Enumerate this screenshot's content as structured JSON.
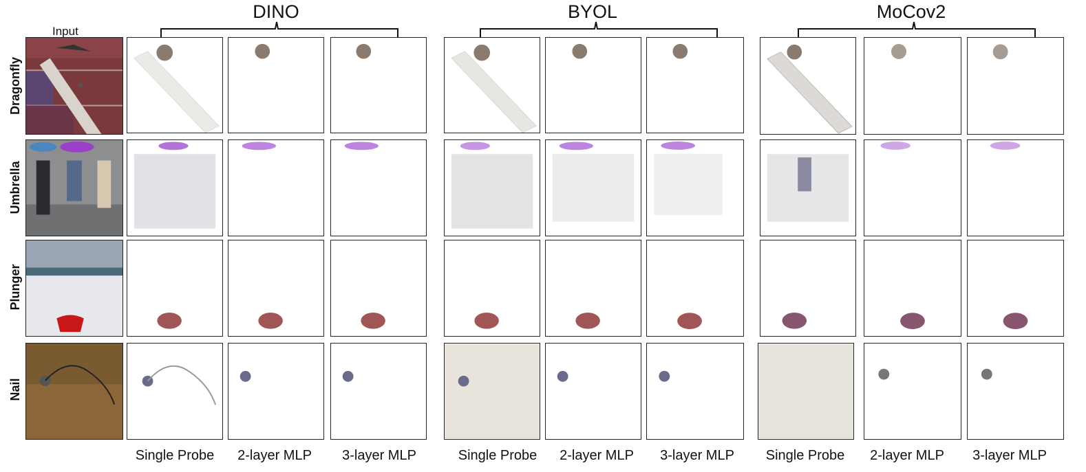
{
  "input_title": "Input",
  "methods": [
    {
      "name": "DINO"
    },
    {
      "name": "BYOL"
    },
    {
      "name": "MoCov2"
    }
  ],
  "rows": [
    {
      "label": "Dragonfly"
    },
    {
      "label": "Umbrella"
    },
    {
      "label": "Plunger"
    },
    {
      "label": "Nail"
    }
  ],
  "column_labels": [
    "Single Probe",
    "2-layer MLP",
    "3-layer MLP",
    "Single Probe",
    "2-layer MLP",
    "3-layer MLP",
    "Single Probe",
    "2-layer MLP",
    "3-layer MLP"
  ]
}
